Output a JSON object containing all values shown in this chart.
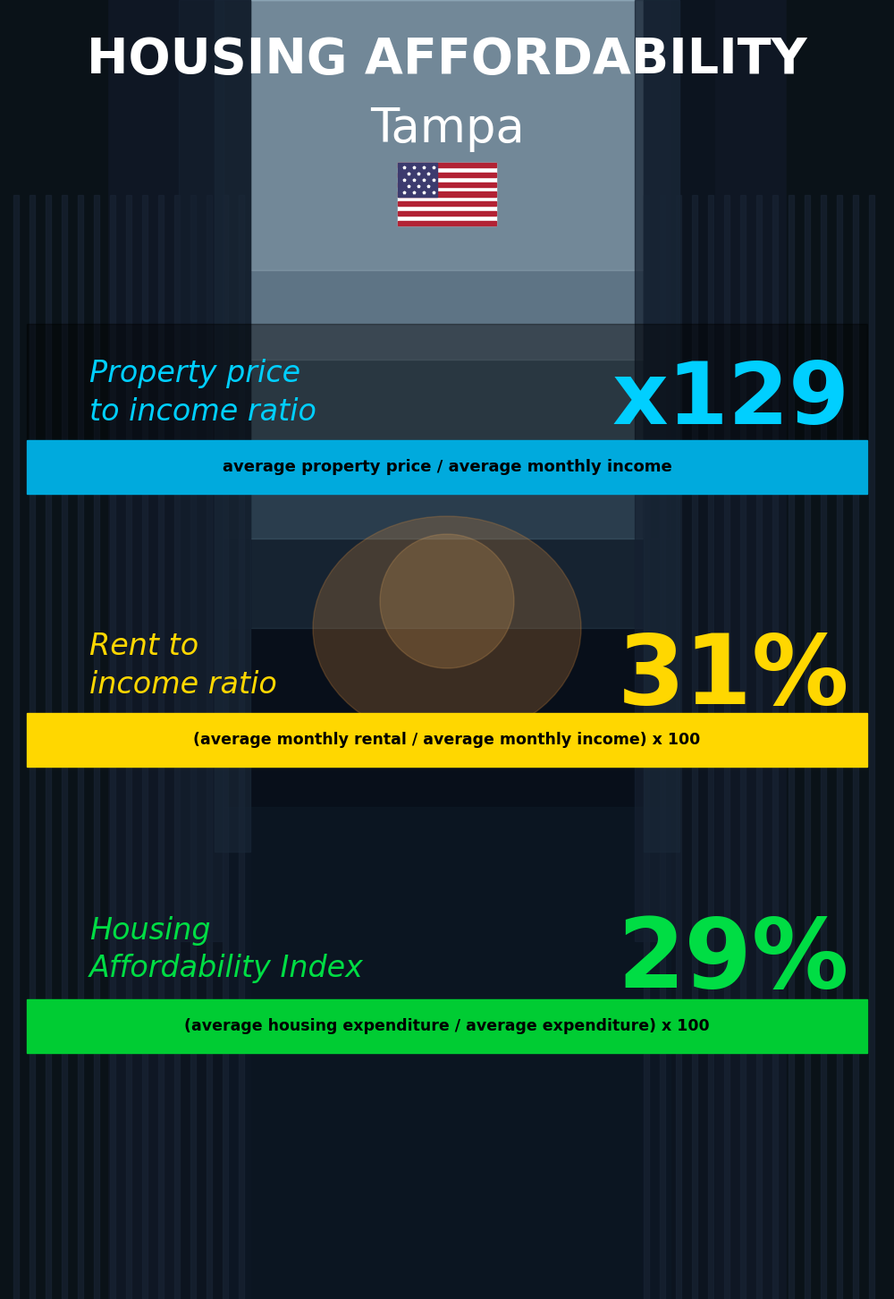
{
  "title_line1": "HOUSING AFFORDABILITY",
  "title_line2": "Tampa",
  "flag": "🇺🇸",
  "section1_label": "Property price\nto income ratio",
  "section1_value": "x129",
  "section1_label_color": "#00CFFF",
  "section1_value_color": "#00CFFF",
  "section1_formula": "average property price / average monthly income",
  "section1_formula_bg": "#00AADD",
  "section2_label": "Rent to\nincome ratio",
  "section2_value": "31%",
  "section2_label_color": "#FFD700",
  "section2_value_color": "#FFD700",
  "section2_formula": "(average monthly rental / average monthly income) x 100",
  "section2_formula_bg": "#FFD700",
  "section3_label": "Housing\nAffordability Index",
  "section3_value": "29%",
  "section3_label_color": "#00DD44",
  "section3_value_color": "#00DD44",
  "section3_formula": "(average housing expenditure / average expenditure) x 100",
  "section3_formula_bg": "#00CC33",
  "bg_color": "#080f1a",
  "title_color": "#FFFFFF",
  "formula_text_color": "#000000",
  "overlay_color": "#000000",
  "overlay_alpha": 0.38
}
